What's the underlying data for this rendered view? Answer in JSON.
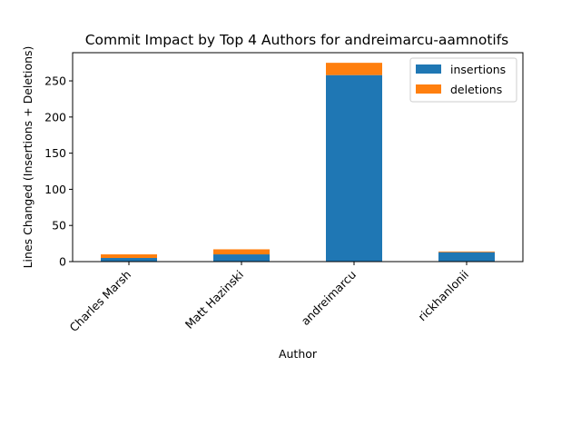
{
  "chart_data": {
    "type": "bar",
    "stacked": true,
    "title": "Commit Impact by Top 4 Authors for andreimarcu-aamnotifs",
    "xlabel": "Author",
    "ylabel": "Lines Changed (Insertions + Deletions)",
    "categories": [
      "Charles Marsh",
      "Matt Hazinski",
      "andreimarcu",
      "rickhanlonii"
    ],
    "series": [
      {
        "name": "insertions",
        "color": "#1f77b4",
        "values": [
          5,
          10,
          258,
          13
        ]
      },
      {
        "name": "deletions",
        "color": "#ff7f0e",
        "values": [
          5,
          7,
          17,
          1
        ]
      }
    ],
    "ylim": [
      0,
      289
    ],
    "yticks": [
      0,
      50,
      100,
      150,
      200,
      250
    ],
    "grid": false,
    "legend_position": "top-right",
    "xtick_rotation": 45
  }
}
